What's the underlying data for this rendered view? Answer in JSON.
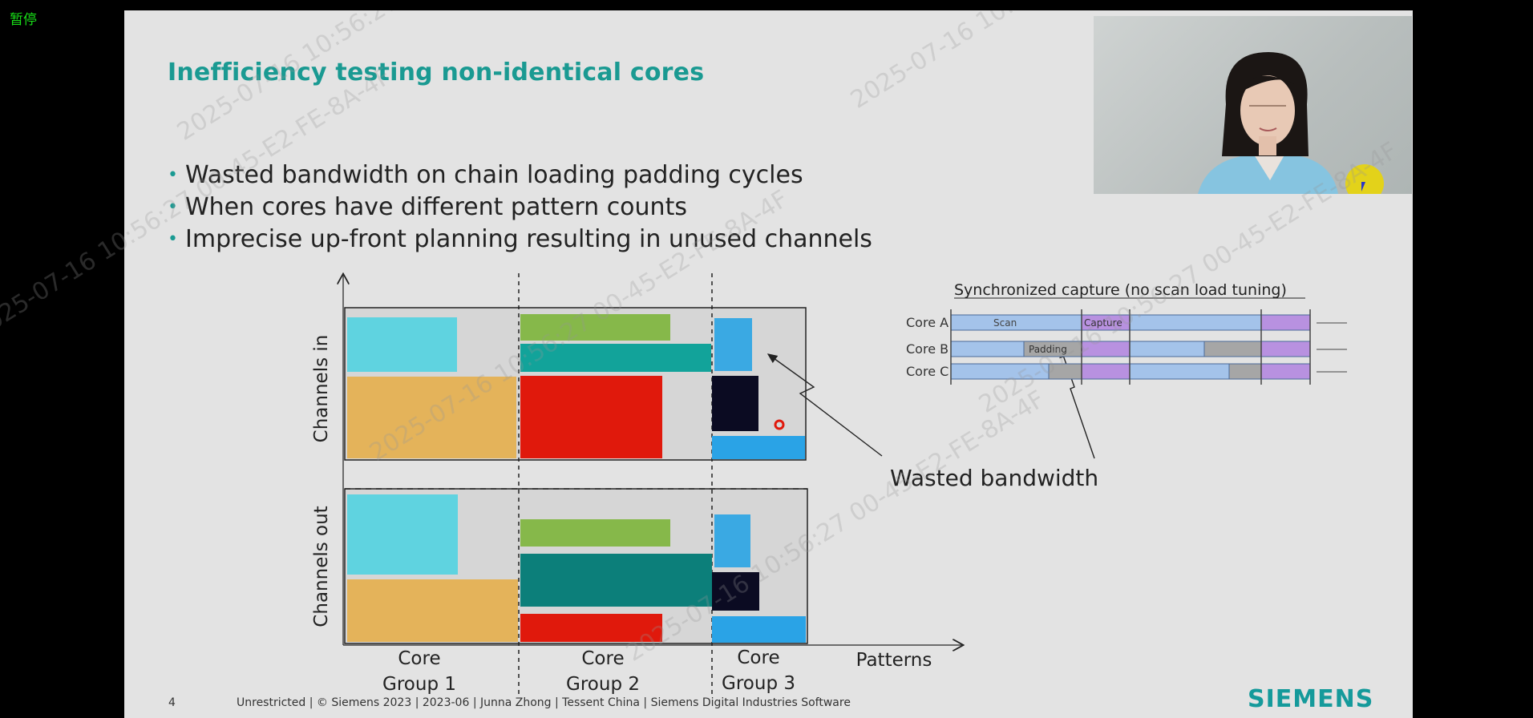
{
  "player": {
    "pause_label": "暂停"
  },
  "slide": {
    "title": "Inefficiency testing non-identical cores",
    "bullets": [
      "Wasted bandwidth on chain loading padding cycles",
      "When cores have different pattern counts",
      "Imprecise up-front planning resulting in unused channels"
    ],
    "diagram": {
      "y_label_in": "Channels in",
      "y_label_out": "Channels out",
      "x_label": "Patterns",
      "groups": [
        {
          "line1": "Core",
          "line2": "Group 1"
        },
        {
          "line1": "Core",
          "line2": "Group 2"
        },
        {
          "line1": "Core",
          "line2": "Group 3"
        }
      ],
      "wasted_label": "Wasted bandwidth",
      "colors": {
        "cyan": "#5fd3e0",
        "orange": "#e4b35a",
        "green": "#86b84a",
        "teal": "#12a39a",
        "dark_teal": "#0c7f7a",
        "red": "#e0190c",
        "blue": "#29a8e6",
        "navy": "#0b0b22"
      }
    },
    "timeline": {
      "title": "Synchronized capture (no scan load tuning)",
      "rows": [
        "Core A",
        "Core B",
        "Core C"
      ],
      "scan_label": "Scan",
      "capture_label": "Capture",
      "padding_label": "Padding"
    },
    "footer": {
      "page": "4",
      "text": "Unrestricted | © Siemens 2023 | 2023-06 | Junna Zhong | Tessent China | Siemens Digital Industries Software",
      "logo": "SIEMENS"
    },
    "watermarks": [
      "2025-07-16 10:56:27 00-45-E2-FE-8A-4F"
    ]
  }
}
